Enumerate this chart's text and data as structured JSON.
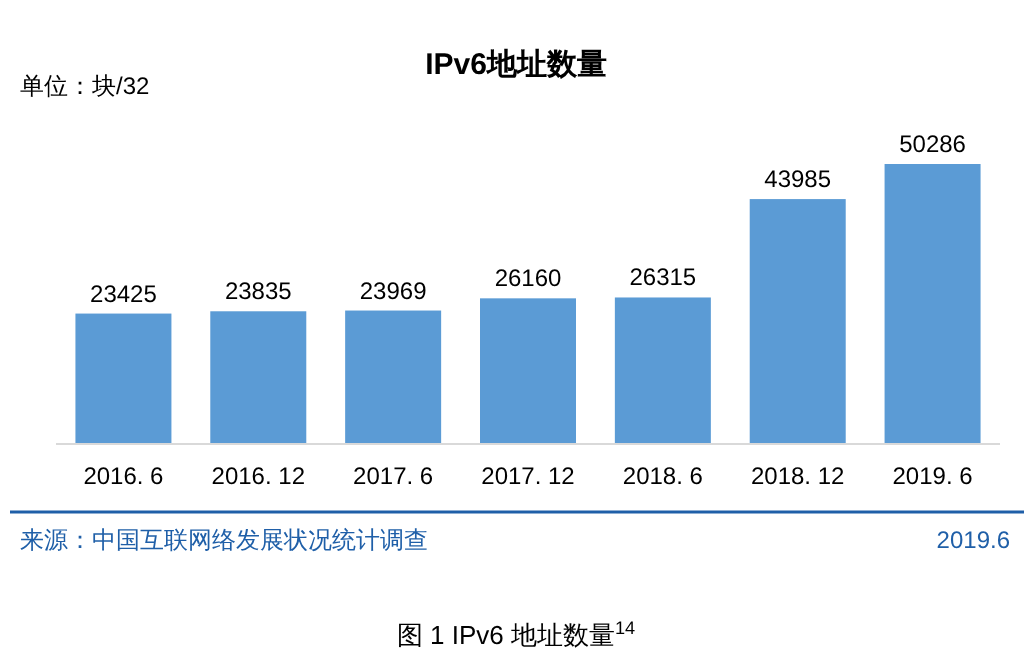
{
  "chart_data": {
    "type": "bar",
    "title": "IPv6地址数量",
    "ylabel": "单位：块/32",
    "categories": [
      "2016. 6",
      "2016. 12",
      "2017. 6",
      "2017. 12",
      "2018. 6",
      "2018. 12",
      "2019. 6"
    ],
    "values": [
      23425,
      23835,
      23969,
      26160,
      26315,
      43985,
      50286
    ],
    "color": "#5b9bd5",
    "data_labels": true,
    "annotations": [
      "来源：中国互联网络发展状况统计调查",
      "2019.6",
      "图 1 IPv6 地址数量$^{14}$"
    ]
  }
}
